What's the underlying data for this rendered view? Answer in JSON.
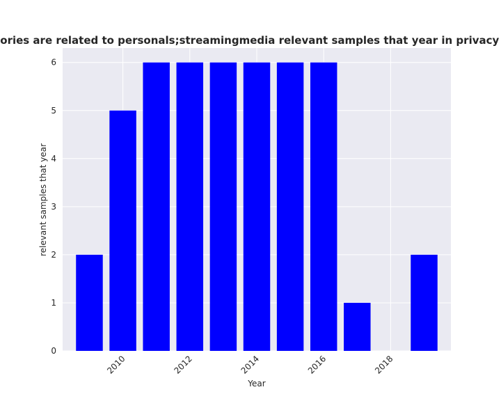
{
  "chart_data": {
    "type": "bar",
    "title": "Categories are related to personals;streamingmedia relevant samples that year in privacy policies",
    "xlabel": "Year",
    "ylabel": "relevant samples that year",
    "x": [
      2009,
      2010,
      2011,
      2012,
      2013,
      2014,
      2015,
      2016,
      2017,
      2019
    ],
    "values": [
      2,
      5,
      6,
      6,
      6,
      6,
      6,
      6,
      1,
      2
    ],
    "xlim": [
      2008.2,
      2019.8
    ],
    "ylim": [
      0,
      6.3
    ],
    "xticks": [
      "2010",
      "2012",
      "2014",
      "2016",
      "2018"
    ],
    "yticks": [
      "0",
      "1",
      "2",
      "3",
      "4",
      "5",
      "6"
    ],
    "bar_color": "#0000ff",
    "background_color": "#eaeaf2",
    "grid": true,
    "legend": "none"
  }
}
